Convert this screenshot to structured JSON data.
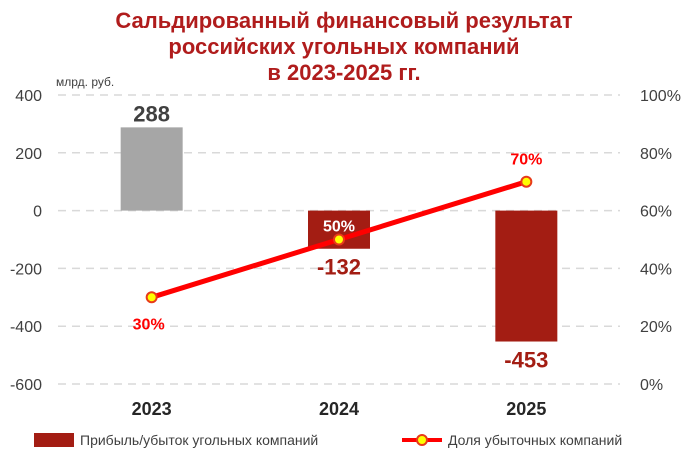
{
  "title_lines": [
    "Сальдированный финансовый результат",
    "российских угольных компаний",
    "в 2023-2025 гг."
  ],
  "chart_data": {
    "type": "bar",
    "categories": [
      "2023",
      "2024",
      "2025"
    ],
    "series": [
      {
        "name": "Прибыль/убыток угольных компаний",
        "type": "bar",
        "axis": "left",
        "values": [
          288,
          -132,
          -453
        ],
        "labels": [
          "288",
          "-132",
          "-453"
        ],
        "colors": [
          "#a6a6a6",
          "#a31d13",
          "#a31d13"
        ],
        "label_colors": [
          "#404040",
          "#a31d13",
          "#a31d13"
        ]
      },
      {
        "name": "Доля убыточных компаний",
        "type": "line",
        "axis": "right",
        "values": [
          30,
          50,
          70
        ],
        "labels": [
          "30%",
          "50%",
          "70%"
        ],
        "color": "#ff0000",
        "marker_fill": "#ffff00"
      }
    ],
    "left_axis": {
      "unit_label": "млрд. руб.",
      "ticks": [
        "400",
        "200",
        "0",
        "-200",
        "-400",
        "-600"
      ],
      "tick_values": [
        400,
        200,
        0,
        -200,
        -400,
        -600
      ],
      "ylim": [
        -600,
        400
      ]
    },
    "right_axis": {
      "ticks": [
        "100%",
        "80%",
        "60%",
        "40%",
        "20%",
        "0%"
      ],
      "tick_values": [
        100,
        80,
        60,
        40,
        20,
        0
      ],
      "ylim": [
        0,
        100
      ]
    },
    "grid": true,
    "legend_position": "bottom"
  }
}
